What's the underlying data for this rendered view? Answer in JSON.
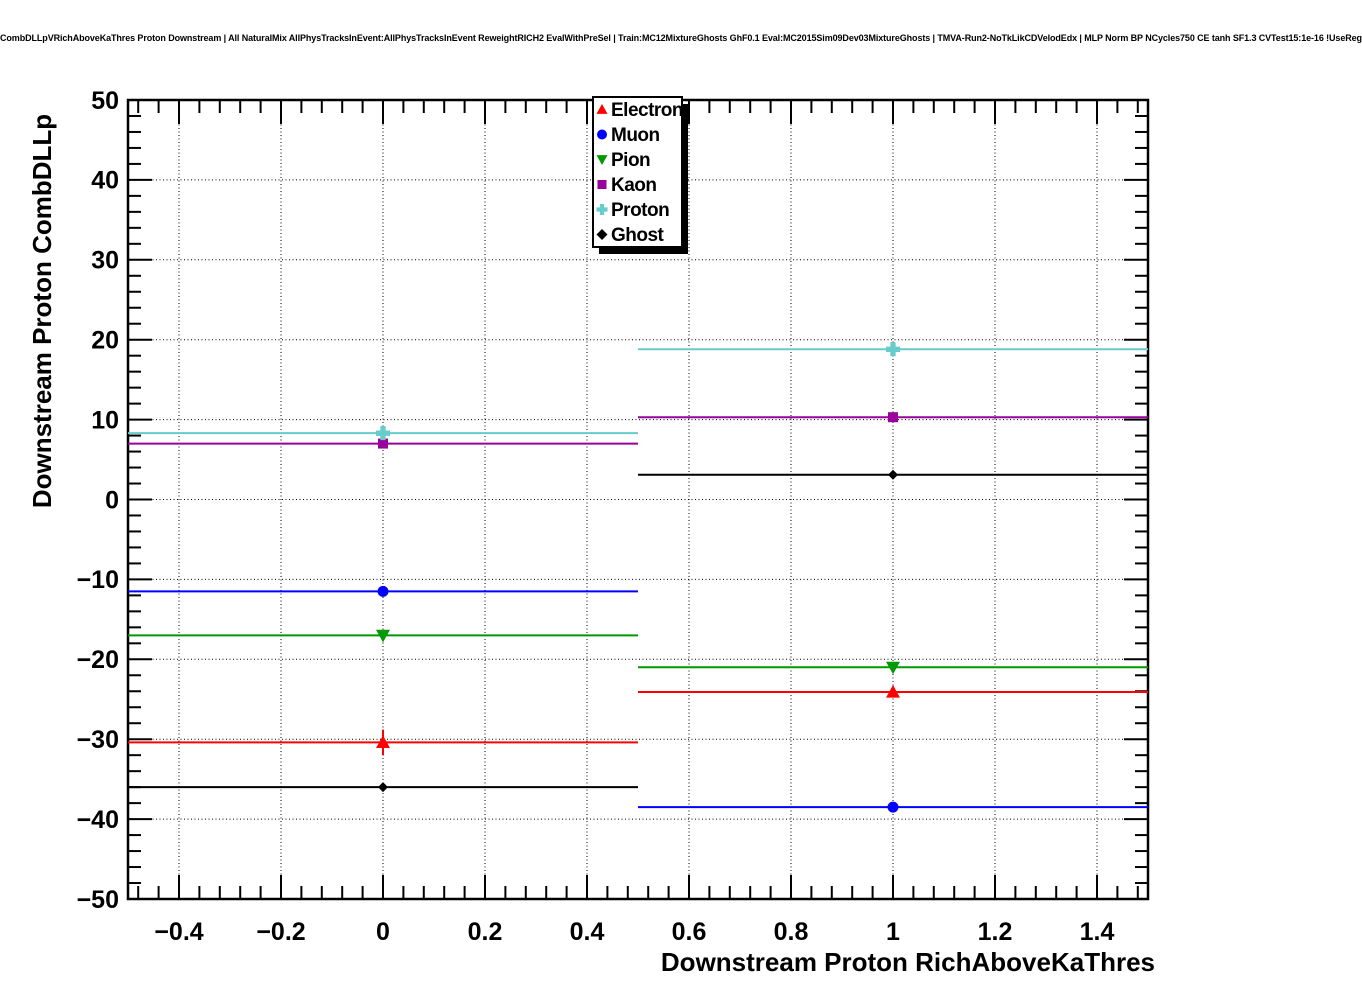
{
  "title": "CombDLLpVRichAboveKaThres Proton Downstream | All NaturalMix AllPhysTracksInEvent:AllPhysTracksInEvent ReweightRICH2 EvalWithPreSel | Train:MC12MixtureGhosts GhF0.1 Eval:MC2015Sim09Dev03MixtureGhosts | TMVA-Run2-NoTkLikCDVelodEdx | MLP Norm BP NCycles750 CE tanh SF1.3 CVTest15:1e-16 !UseReg",
  "chart_data": {
    "type": "scatter",
    "title": "CombDLLpVRichAboveKaThres Proton Downstream",
    "xlabel": "Downstream Proton RichAboveKaThres",
    "ylabel": "Downstream Proton CombDLLp",
    "xlim": [
      -0.5,
      1.5
    ],
    "ylim": [
      -50,
      50
    ],
    "grid": true,
    "grid_style": "dotted",
    "legend_position": "top-center-inside",
    "x_ticks": [
      -0.4,
      -0.2,
      0,
      0.2,
      0.4,
      0.6,
      0.8,
      1,
      1.2,
      1.4
    ],
    "x_tick_labels": [
      "−0.4",
      "−0.2",
      "0",
      "0.2",
      "0.4",
      "0.6",
      "0.8",
      "1",
      "1.2",
      "1.4"
    ],
    "y_ticks": [
      50,
      40,
      30,
      20,
      10,
      0,
      -10,
      -20,
      -30,
      -40,
      -50
    ],
    "y_tick_labels": [
      "50",
      "40",
      "30",
      "20",
      "10",
      "0",
      "−10",
      "−20",
      "−30",
      "−40",
      "−50"
    ],
    "x_minor_step": 0.04,
    "y_minor_step": 2,
    "series": [
      {
        "name": "Electron",
        "color": "#ff0000",
        "marker": "triangle-up",
        "points": [
          {
            "x": 0,
            "y": -30.4,
            "xlow": -0.5,
            "xhigh": 0.5,
            "yerr": 1.6
          },
          {
            "x": 1,
            "y": -24.1,
            "xlow": 0.5,
            "xhigh": 1.5,
            "yerr": 0.3
          }
        ]
      },
      {
        "name": "Muon",
        "color": "#0000ff",
        "marker": "circle",
        "points": [
          {
            "x": 0,
            "y": -11.5,
            "xlow": -0.5,
            "xhigh": 0.5,
            "yerr": 0
          },
          {
            "x": 1,
            "y": -38.5,
            "xlow": 0.5,
            "xhigh": 1.5,
            "yerr": 0
          }
        ]
      },
      {
        "name": "Pion",
        "color": "#009900",
        "marker": "triangle-down",
        "points": [
          {
            "x": 0,
            "y": -17.0,
            "xlow": -0.5,
            "xhigh": 0.5,
            "yerr": 0
          },
          {
            "x": 1,
            "y": -21.0,
            "xlow": 0.5,
            "xhigh": 1.5,
            "yerr": 0
          }
        ]
      },
      {
        "name": "Kaon",
        "color": "#990099",
        "marker": "square",
        "points": [
          {
            "x": 0,
            "y": 7.0,
            "xlow": -0.5,
            "xhigh": 0.5,
            "yerr": 0
          },
          {
            "x": 1,
            "y": 10.3,
            "xlow": 0.5,
            "xhigh": 1.5,
            "yerr": 0
          }
        ]
      },
      {
        "name": "Proton",
        "color": "#66cccc",
        "marker": "cross",
        "points": [
          {
            "x": 0,
            "y": 8.3,
            "xlow": -0.5,
            "xhigh": 0.5,
            "yerr": 0
          },
          {
            "x": 1,
            "y": 18.8,
            "xlow": 0.5,
            "xhigh": 1.5,
            "yerr": 0
          }
        ]
      },
      {
        "name": "Ghost",
        "color": "#000000",
        "marker": "diamond",
        "points": [
          {
            "x": 0,
            "y": -36.0,
            "xlow": -0.5,
            "xhigh": 0.5,
            "yerr": 0.5
          },
          {
            "x": 1,
            "y": 3.1,
            "xlow": 0.5,
            "xhigh": 1.5,
            "yerr": 0.5
          }
        ]
      }
    ]
  }
}
